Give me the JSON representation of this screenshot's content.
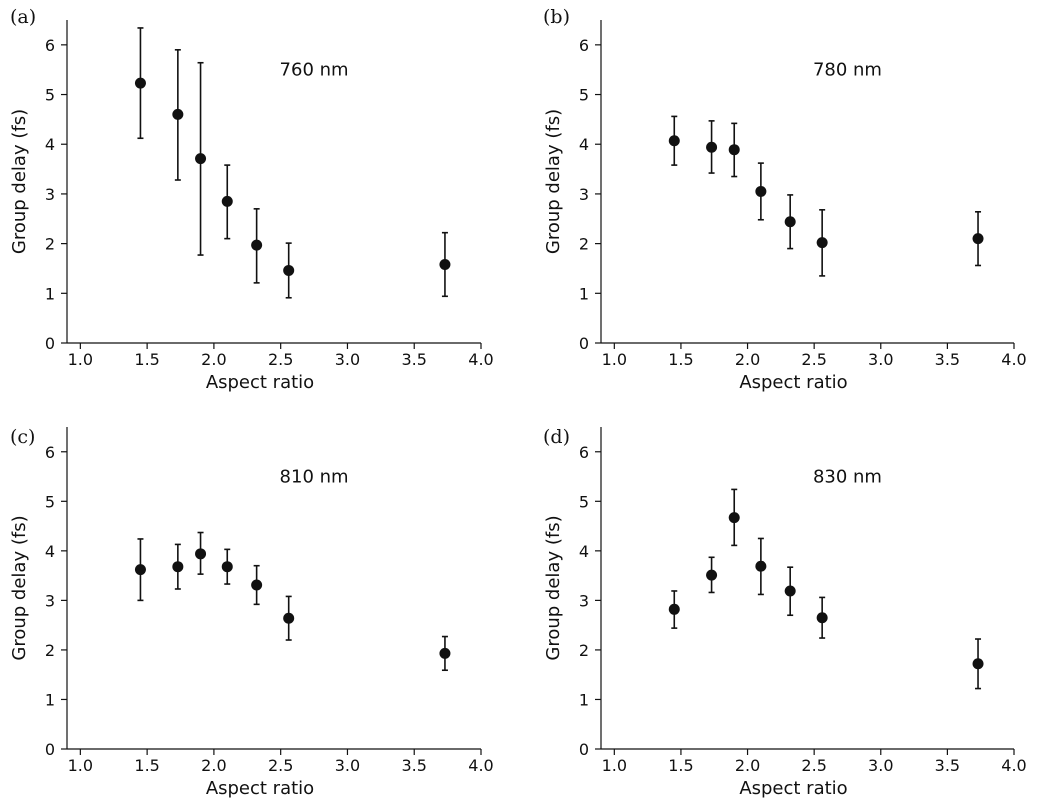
{
  "chart_data": [
    {
      "type": "scatter",
      "panel_label": "(a)",
      "annotation": "760 nm",
      "xlabel": "Aspect ratio",
      "ylabel": "Group delay (fs)",
      "xlim": [
        0.9,
        4.0
      ],
      "ylim": [
        0,
        6.5
      ],
      "xticks": [
        1.0,
        1.5,
        2.0,
        2.5,
        3.0,
        3.5,
        4.0
      ],
      "xtick_labels": [
        "1.0",
        "1.5",
        "2.0",
        "2.5",
        "3.0",
        "3.5",
        "4.0"
      ],
      "yticks": [
        0,
        1,
        2,
        3,
        4,
        5,
        6
      ],
      "ytick_labels": [
        "0",
        "1",
        "2",
        "3",
        "4",
        "5",
        "6"
      ],
      "grid": false,
      "points": [
        {
          "x": 1.45,
          "y": 5.23,
          "err_low": 4.12,
          "err_high": 6.34
        },
        {
          "x": 1.73,
          "y": 4.6,
          "err_low": 3.28,
          "err_high": 5.9
        },
        {
          "x": 1.9,
          "y": 3.71,
          "err_low": 1.77,
          "err_high": 5.64
        },
        {
          "x": 2.1,
          "y": 2.85,
          "err_low": 2.1,
          "err_high": 3.58
        },
        {
          "x": 2.32,
          "y": 1.97,
          "err_low": 1.21,
          "err_high": 2.7
        },
        {
          "x": 2.56,
          "y": 1.46,
          "err_low": 0.91,
          "err_high": 2.01
        },
        {
          "x": 3.73,
          "y": 1.58,
          "err_low": 0.94,
          "err_high": 2.22
        }
      ]
    },
    {
      "type": "scatter",
      "panel_label": "(b)",
      "annotation": "780 nm",
      "xlabel": "Aspect ratio",
      "ylabel": "Group delay (fs)",
      "xlim": [
        0.9,
        4.0
      ],
      "ylim": [
        0,
        6.5
      ],
      "xticks": [
        1.0,
        1.5,
        2.0,
        2.5,
        3.0,
        3.5,
        4.0
      ],
      "xtick_labels": [
        "1.0",
        "1.5",
        "2.0",
        "2.5",
        "3.0",
        "3.5",
        "4.0"
      ],
      "yticks": [
        0,
        1,
        2,
        3,
        4,
        5,
        6
      ],
      "ytick_labels": [
        "0",
        "1",
        "2",
        "3",
        "4",
        "5",
        "6"
      ],
      "grid": false,
      "points": [
        {
          "x": 1.45,
          "y": 4.07,
          "err_low": 3.58,
          "err_high": 4.56
        },
        {
          "x": 1.73,
          "y": 3.94,
          "err_low": 3.42,
          "err_high": 4.47
        },
        {
          "x": 1.9,
          "y": 3.89,
          "err_low": 3.35,
          "err_high": 4.42
        },
        {
          "x": 2.1,
          "y": 3.05,
          "err_low": 2.48,
          "err_high": 3.62
        },
        {
          "x": 2.32,
          "y": 2.44,
          "err_low": 1.9,
          "err_high": 2.98
        },
        {
          "x": 2.56,
          "y": 2.02,
          "err_low": 1.35,
          "err_high": 2.68
        },
        {
          "x": 3.73,
          "y": 2.1,
          "err_low": 1.56,
          "err_high": 2.64
        }
      ]
    },
    {
      "type": "scatter",
      "panel_label": "(c)",
      "annotation": "810 nm",
      "xlabel": "Aspect ratio",
      "ylabel": "Group delay (fs)",
      "xlim": [
        0.9,
        4.0
      ],
      "ylim": [
        0,
        6.5
      ],
      "xticks": [
        1.0,
        1.5,
        2.0,
        2.5,
        3.0,
        3.5,
        4.0
      ],
      "xtick_labels": [
        "1.0",
        "1.5",
        "2.0",
        "2.5",
        "3.0",
        "3.5",
        "4.0"
      ],
      "yticks": [
        0,
        1,
        2,
        3,
        4,
        5,
        6
      ],
      "ytick_labels": [
        "0",
        "1",
        "2",
        "3",
        "4",
        "5",
        "6"
      ],
      "grid": false,
      "points": [
        {
          "x": 1.45,
          "y": 3.62,
          "err_low": 3.0,
          "err_high": 4.24
        },
        {
          "x": 1.73,
          "y": 3.68,
          "err_low": 3.23,
          "err_high": 4.13
        },
        {
          "x": 1.9,
          "y": 3.94,
          "err_low": 3.53,
          "err_high": 4.37
        },
        {
          "x": 2.1,
          "y": 3.68,
          "err_low": 3.33,
          "err_high": 4.03
        },
        {
          "x": 2.32,
          "y": 3.31,
          "err_low": 2.92,
          "err_high": 3.7
        },
        {
          "x": 2.56,
          "y": 2.64,
          "err_low": 2.2,
          "err_high": 3.08
        },
        {
          "x": 3.73,
          "y": 1.93,
          "err_low": 1.59,
          "err_high": 2.27
        }
      ]
    },
    {
      "type": "scatter",
      "panel_label": "(d)",
      "annotation": "830 nm",
      "xlabel": "Aspect ratio",
      "ylabel": "Group delay (fs)",
      "xlim": [
        0.9,
        4.0
      ],
      "ylim": [
        0,
        6.5
      ],
      "xticks": [
        1.0,
        1.5,
        2.0,
        2.5,
        3.0,
        3.5,
        4.0
      ],
      "xtick_labels": [
        "1.0",
        "1.5",
        "2.0",
        "2.5",
        "3.0",
        "3.5",
        "4.0"
      ],
      "yticks": [
        0,
        1,
        2,
        3,
        4,
        5,
        6
      ],
      "ytick_labels": [
        "0",
        "1",
        "2",
        "3",
        "4",
        "5",
        "6"
      ],
      "grid": false,
      "points": [
        {
          "x": 1.45,
          "y": 2.82,
          "err_low": 2.44,
          "err_high": 3.19
        },
        {
          "x": 1.73,
          "y": 3.51,
          "err_low": 3.16,
          "err_high": 3.87
        },
        {
          "x": 1.9,
          "y": 4.67,
          "err_low": 4.11,
          "err_high": 5.24
        },
        {
          "x": 2.1,
          "y": 3.69,
          "err_low": 3.12,
          "err_high": 4.25
        },
        {
          "x": 2.32,
          "y": 3.19,
          "err_low": 2.7,
          "err_high": 3.67
        },
        {
          "x": 2.56,
          "y": 2.65,
          "err_low": 2.24,
          "err_high": 3.06
        },
        {
          "x": 3.73,
          "y": 1.72,
          "err_low": 1.22,
          "err_high": 2.22
        }
      ]
    }
  ]
}
